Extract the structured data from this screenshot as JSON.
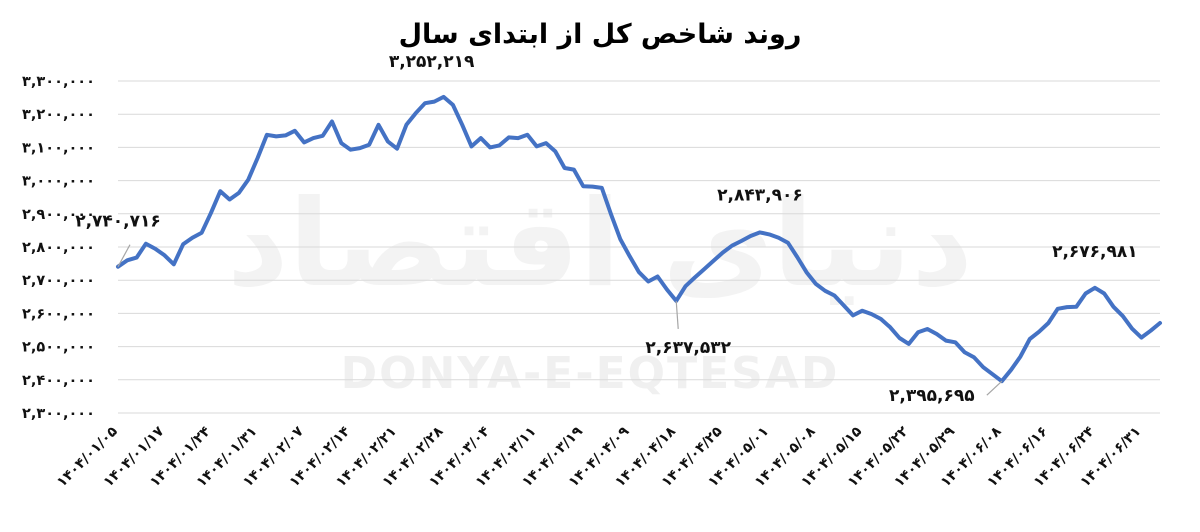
{
  "chart_data": {
    "type": "line",
    "title": "روند شاخص کل از ابتدای سال",
    "xlabel": "",
    "ylabel": "",
    "ylim": [
      2300000,
      3300000
    ],
    "yticks": [
      "۲,۳۰۰,۰۰۰",
      "۲,۴۰۰,۰۰۰",
      "۲,۵۰۰,۰۰۰",
      "۲,۶۰۰,۰۰۰",
      "۲,۷۰۰,۰۰۰",
      "۲,۸۰۰,۰۰۰",
      "۲,۹۰۰,۰۰۰",
      "۳,۰۰۰,۰۰۰",
      "۳,۱۰۰,۰۰۰",
      "۳,۲۰۰,۰۰۰",
      "۳,۳۰۰,۰۰۰"
    ],
    "xticks": [
      "۱۴۰۴/۰۱/۰۵",
      "۱۴۰۴/۰۱/۱۷",
      "۱۴۰۴/۰۱/۲۴",
      "۱۴۰۴/۰۱/۳۱",
      "۱۴۰۴/۰۲/۰۷",
      "۱۴۰۴/۰۲/۱۴",
      "۱۴۰۴/۰۲/۲۱",
      "۱۴۰۴/۰۲/۲۸",
      "۱۴۰۴/۰۳/۰۴",
      "۱۴۰۴/۰۳/۱۱",
      "۱۴۰۴/۰۳/۱۹",
      "۱۴۰۴/۰۴/۰۹",
      "۱۴۰۴/۰۴/۱۸",
      "۱۴۰۴/۰۴/۲۵",
      "۱۴۰۴/۰۵/۰۱",
      "۱۴۰۴/۰۵/۰۸",
      "۱۴۰۴/۰۵/۱۵",
      "۱۴۰۴/۰۵/۲۲",
      "۱۴۰۴/۰۵/۲۹",
      "۱۴۰۴/۰۶/۰۸",
      "۱۴۰۴/۰۶/۱۶",
      "۱۴۰۴/۰۶/۲۴",
      "۱۴۰۴/۰۶/۳۱"
    ],
    "xtick_positions": [
      0,
      5,
      10,
      15,
      20,
      25,
      30,
      35,
      40,
      45,
      50,
      55,
      60,
      65,
      70,
      75,
      80,
      85,
      90,
      95,
      100,
      105,
      110
    ],
    "grid": true,
    "legend": "none",
    "line_color": "#4472C4",
    "values": [
      2740716,
      2760000,
      2768000,
      2810000,
      2795000,
      2775000,
      2748000,
      2808000,
      2828000,
      2843000,
      2903000,
      2968000,
      2943000,
      2963000,
      3003000,
      3068000,
      3138000,
      3133000,
      3136000,
      3150000,
      3115000,
      3128000,
      3135000,
      3178000,
      3113000,
      3093000,
      3098000,
      3108000,
      3168000,
      3118000,
      3096000,
      3168000,
      3203000,
      3233000,
      3238000,
      3252219,
      3228000,
      3168000,
      3103000,
      3128000,
      3100000,
      3106000,
      3130000,
      3128000,
      3138000,
      3103000,
      3113000,
      3088000,
      3038000,
      3033000,
      2983000,
      2982000,
      2978000,
      2898000,
      2823000,
      2772000,
      2724000,
      2696000,
      2711000,
      2672000,
      2637532,
      2682000,
      2708000,
      2733000,
      2758000,
      2783000,
      2804000,
      2818000,
      2833000,
      2843906,
      2838000,
      2828000,
      2813000,
      2770000,
      2724000,
      2689000,
      2668000,
      2654000,
      2624000,
      2594000,
      2608000,
      2598000,
      2583000,
      2558000,
      2526000,
      2508000,
      2543000,
      2553000,
      2538000,
      2518000,
      2513000,
      2483000,
      2468000,
      2438000,
      2417000,
      2395695,
      2430000,
      2470000,
      2523000,
      2545000,
      2571000,
      2614000,
      2619000,
      2620000,
      2660000,
      2676981,
      2660000,
      2620000,
      2592000,
      2554000,
      2527000,
      2548000,
      2571000
    ],
    "annotations": [
      {
        "label": "۲,۷۴۰,۷۱۶",
        "index": 0
      },
      {
        "label": "۳,۲۵۲,۲۱۹",
        "index": 35
      },
      {
        "label": "۲,۶۳۷,۵۳۲",
        "index": 60
      },
      {
        "label": "۲,۸۴۳,۹۰۶",
        "index": 69
      },
      {
        "label": "۲,۳۹۵,۶۹۵",
        "index": 95
      },
      {
        "label": "۲,۶۷۶,۹۸۱",
        "index": 105
      }
    ],
    "watermark_fa": "دنیای اقتصاد",
    "watermark_en": "DONYA-E-EQTESAD"
  }
}
